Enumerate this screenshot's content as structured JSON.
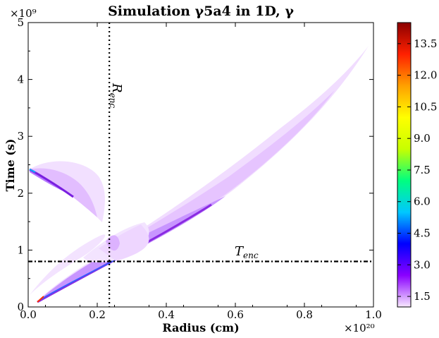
{
  "chart_data": {
    "type": "heatmap",
    "title": "Simulation γ5a4 in 1D, γ",
    "xlabel": "Radius (cm)",
    "ylabel": "Time (s)",
    "x_multiplier": "×10²⁰",
    "y_multiplier": "×10⁹",
    "xlim": [
      0.0,
      1.0
    ],
    "ylim": [
      0,
      5
    ],
    "x_ticks": [
      "0.0",
      "0.2",
      "0.4",
      "0.6",
      "0.8",
      "1.0"
    ],
    "y_ticks": [
      "0",
      "1",
      "2",
      "3",
      "4",
      "5"
    ],
    "x_tick_values": [
      0.0,
      0.2,
      0.4,
      0.6,
      0.8,
      1.0
    ],
    "y_tick_values": [
      0,
      1,
      2,
      3,
      4,
      5
    ],
    "colorbar": {
      "range": [
        1.0,
        14.5
      ],
      "ticks": [
        "1.5",
        "3.0",
        "4.5",
        "6.0",
        "7.5",
        "9.0",
        "10.5",
        "12.0",
        "13.5"
      ],
      "tick_values": [
        1.5,
        3.0,
        4.5,
        6.0,
        7.5,
        9.0,
        10.5,
        12.0,
        13.5
      ],
      "colors": [
        "#f8e8ff",
        "#8a00ff",
        "#0000ff",
        "#00c8ff",
        "#00ff80",
        "#c8ff00",
        "#ffff00",
        "#ffa000",
        "#ff2000",
        "#8b0000"
      ]
    },
    "annotations": [
      {
        "name": "R_enc",
        "text": "R",
        "subscript": "enc",
        "orientation": "vertical-line",
        "x_value": 0.235
      },
      {
        "name": "T_enc",
        "text": "T",
        "subscript": "enc",
        "orientation": "horizontal-line",
        "y_value": 0.8
      }
    ]
  }
}
